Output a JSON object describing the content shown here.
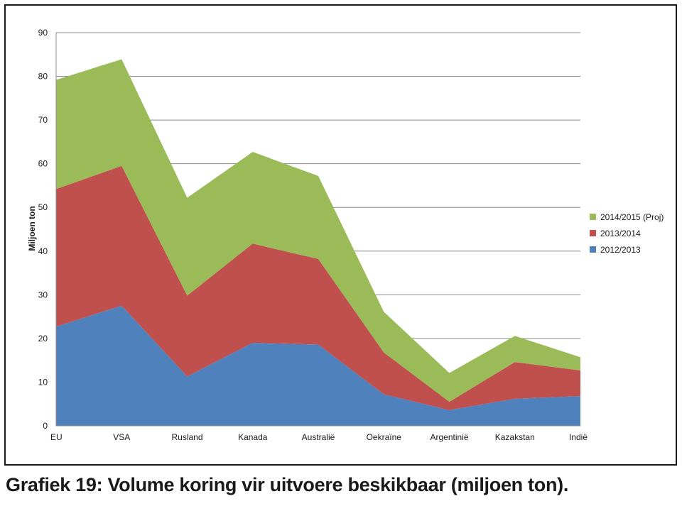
{
  "caption": "Grafiek 19: Volume koring vir uitvoere beskikbaar (miljoen ton).",
  "chart_data": {
    "type": "area",
    "stacked": true,
    "ylabel": "Miljoen ton",
    "xlabel": "",
    "ylim": [
      0,
      90
    ],
    "yticks": [
      0,
      10,
      20,
      30,
      40,
      50,
      60,
      70,
      80,
      90
    ],
    "grid": true,
    "legend_placement": "right",
    "categories": [
      "EU",
      "VSA",
      "Rusland",
      "Kanada",
      "Australië",
      "Oekraïne",
      "Argentinië",
      "Kazakstan",
      "Indië"
    ],
    "series": [
      {
        "name": "2012/2013",
        "color": "#4f81bd",
        "values": [
          22.7,
          27.5,
          11.3,
          19.0,
          18.6,
          7.2,
          3.6,
          6.2,
          6.8
        ]
      },
      {
        "name": "2013/2014",
        "color": "#c0504d",
        "values": [
          31.5,
          32.0,
          18.5,
          22.7,
          19.6,
          9.6,
          1.9,
          8.4,
          5.9
        ]
      },
      {
        "name": "2014/2015 (Proj)",
        "color": "#9bbb59",
        "values": [
          25.0,
          24.4,
          22.4,
          21.0,
          19.0,
          9.3,
          6.6,
          6.0,
          3.0
        ]
      }
    ]
  }
}
